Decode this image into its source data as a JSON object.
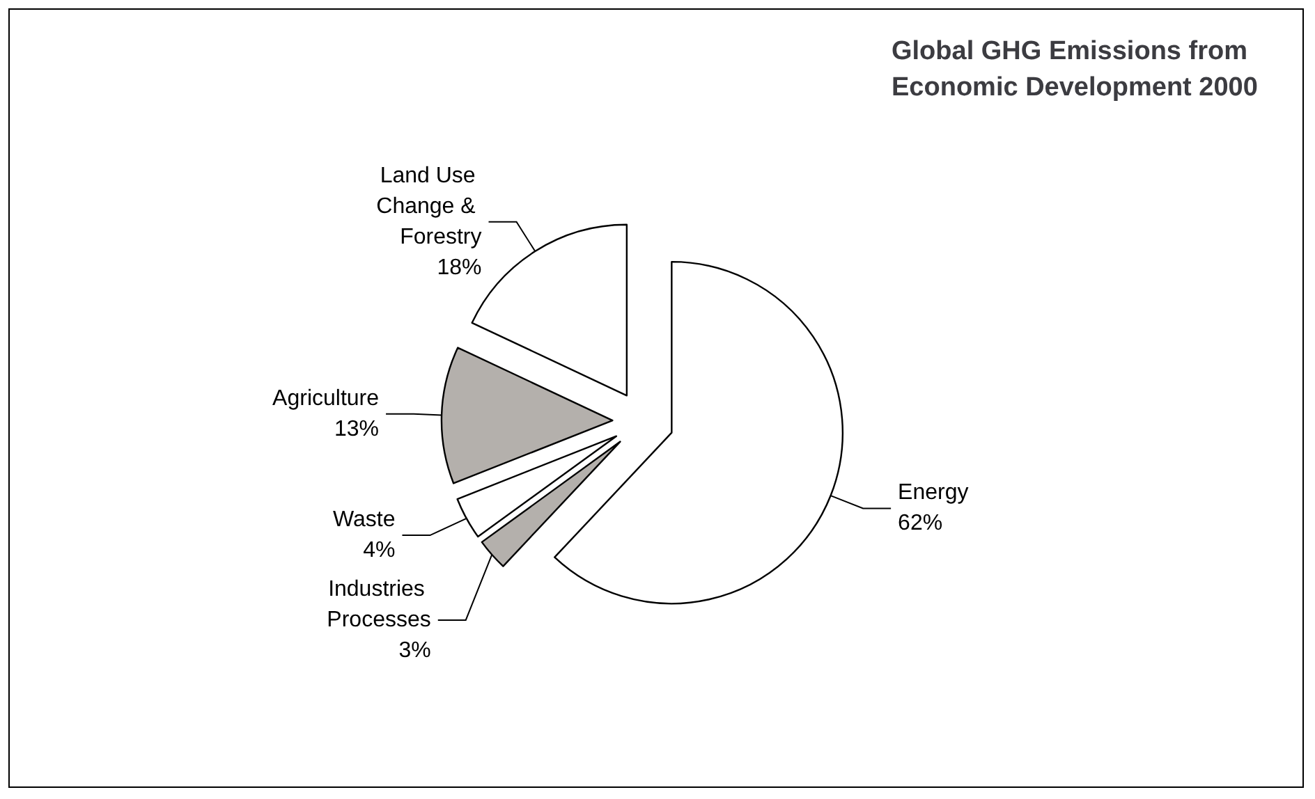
{
  "chart_data": {
    "type": "pie",
    "title": "Global GHG Emissions from Economic Development 2000",
    "categories": [
      "Energy",
      "Industries Processes",
      "Waste",
      "Agriculture",
      "Land Use Change & Forestry"
    ],
    "values": [
      62,
      3,
      4,
      13,
      18
    ],
    "value_labels": [
      "62%",
      "3%",
      "4%",
      "13%",
      "18%"
    ],
    "colors": [
      "#ffffff",
      "#b4b0ac",
      "#ffffff",
      "#b4b0ac",
      "#ffffff"
    ],
    "legend": false
  }
}
